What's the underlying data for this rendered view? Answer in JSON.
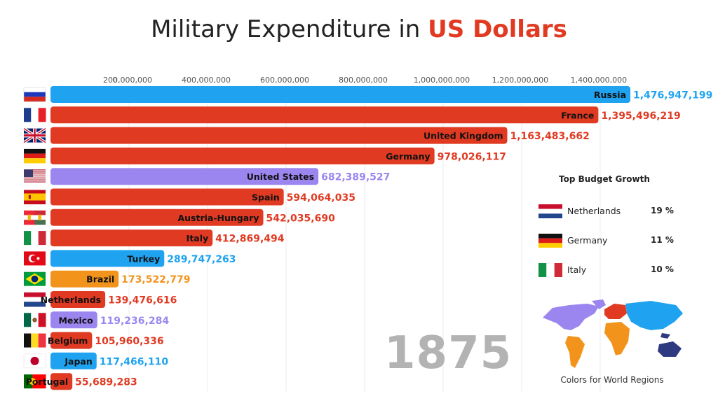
{
  "title": {
    "prefix": "Military Expenditure in ",
    "highlight": "US Dollars"
  },
  "year": "1875",
  "colors": {
    "europe": "#e03a22",
    "asia": "#1fa3f0",
    "americas_north": "#9b86f0",
    "americas_south": "#f2941c",
    "oceania": "#2d3a80",
    "title_accent": "#e03a22"
  },
  "chart_data": {
    "type": "bar",
    "orientation": "horizontal",
    "xlim": [
      0,
      1476947199
    ],
    "ticks": [
      {
        "value": 0,
        "label": "0"
      },
      {
        "value": 200000000,
        "label": "200,000,000"
      },
      {
        "value": 400000000,
        "label": "400,000,000"
      },
      {
        "value": 600000000,
        "label": "600,000,000"
      },
      {
        "value": 800000000,
        "label": "800,000,000"
      },
      {
        "value": 1000000000,
        "label": "1,000,000,000"
      },
      {
        "value": 1200000000,
        "label": "1,200,000,000"
      },
      {
        "value": 1400000000,
        "label": "1,400,000,000"
      }
    ],
    "bars": [
      {
        "name": "Russia",
        "value": 1476947199,
        "label": "1,476,947,199",
        "color": "#1fa3f0",
        "flag": "russia"
      },
      {
        "name": "France",
        "value": 1395496219,
        "label": "1,395,496,219",
        "color": "#e03a22",
        "flag": "france"
      },
      {
        "name": "United Kingdom",
        "value": 1163483662,
        "label": "1,163,483,662",
        "color": "#e03a22",
        "flag": "uk"
      },
      {
        "name": "Germany",
        "value": 978026117,
        "label": "978,026,117",
        "color": "#e03a22",
        "flag": "germany"
      },
      {
        "name": "United States",
        "value": 682389527,
        "label": "682,389,527",
        "color": "#9b86f0",
        "flag": "usa"
      },
      {
        "name": "Spain",
        "value": 594064035,
        "label": "594,064,035",
        "color": "#e03a22",
        "flag": "spain"
      },
      {
        "name": "Austria-Hungary",
        "value": 542035690,
        "label": "542,035,690",
        "color": "#e03a22",
        "flag": "austria-hungary"
      },
      {
        "name": "Italy",
        "value": 412869494,
        "label": "412,869,494",
        "color": "#e03a22",
        "flag": "italy"
      },
      {
        "name": "Turkey",
        "value": 289747263,
        "label": "289,747,263",
        "color": "#1fa3f0",
        "flag": "turkey"
      },
      {
        "name": "Brazil",
        "value": 173522779,
        "label": "173,522,779",
        "color": "#f2941c",
        "flag": "brazil"
      },
      {
        "name": "Netherlands",
        "value": 139476616,
        "label": "139,476,616",
        "color": "#e03a22",
        "flag": "netherlands"
      },
      {
        "name": "Mexico",
        "value": 119236284,
        "label": "119,236,284",
        "color": "#9b86f0",
        "flag": "mexico"
      },
      {
        "name": "Belgium",
        "value": 105960336,
        "label": "105,960,336",
        "color": "#e03a22",
        "flag": "belgium"
      },
      {
        "name": "Japan",
        "value": 117466110,
        "label": "117,466,110",
        "color": "#1fa3f0",
        "flag": "japan"
      },
      {
        "name": "Portugal",
        "value": 55689283,
        "label": "55,689,283",
        "color": "#e03a22",
        "flag": "portugal"
      }
    ]
  },
  "growth_panel": {
    "title": "Top Budget Growth",
    "items": [
      {
        "country": "Netherlands",
        "value": "19 %",
        "flag": "netherlands"
      },
      {
        "country": "Germany",
        "value": "11 %",
        "flag": "germany"
      },
      {
        "country": "Italy",
        "value": "10 %",
        "flag": "italy"
      }
    ]
  },
  "regions_caption": "Colors for World Regions"
}
